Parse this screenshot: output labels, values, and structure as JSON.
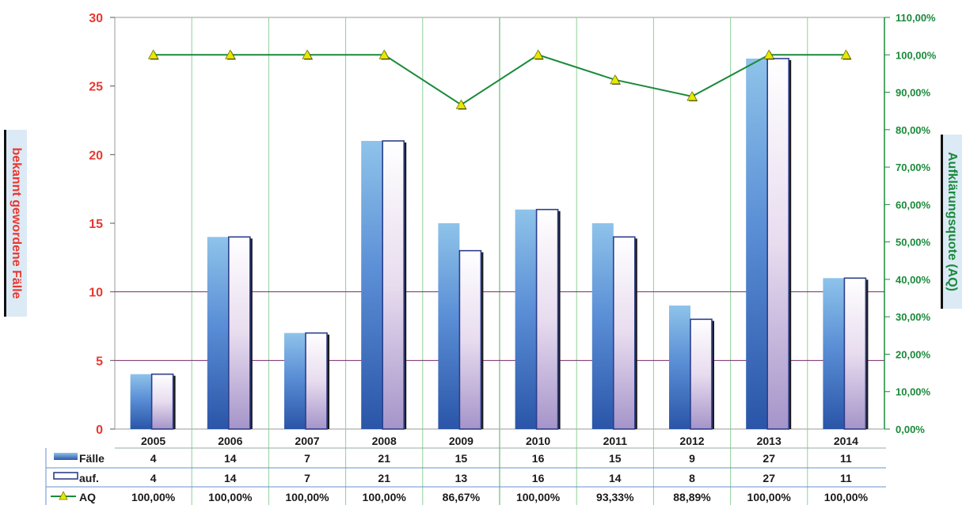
{
  "chart_data": {
    "type": "bar",
    "categories": [
      "2005",
      "2006",
      "2007",
      "2008",
      "2009",
      "2010",
      "2011",
      "2012",
      "2013",
      "2014"
    ],
    "series": [
      {
        "name": "Fälle",
        "type": "bar",
        "axis": "left",
        "values": [
          4,
          14,
          7,
          21,
          15,
          16,
          15,
          9,
          27,
          11
        ]
      },
      {
        "name": "auf.",
        "type": "bar",
        "axis": "left",
        "values": [
          4,
          14,
          7,
          21,
          13,
          16,
          14,
          8,
          27,
          11
        ]
      },
      {
        "name": "AQ",
        "type": "line",
        "axis": "right",
        "values": [
          100,
          100,
          100,
          100,
          86.67,
          100,
          93.33,
          88.89,
          100,
          100
        ]
      }
    ],
    "table": {
      "Fälle": [
        "4",
        "14",
        "7",
        "21",
        "15",
        "16",
        "15",
        "9",
        "27",
        "11"
      ],
      "auf.": [
        "4",
        "14",
        "7",
        "21",
        "13",
        "16",
        "14",
        "8",
        "27",
        "11"
      ],
      "AQ": [
        "100,00%",
        "100,00%",
        "100,00%",
        "100,00%",
        "86,67%",
        "100,00%",
        "93,33%",
        "88,89%",
        "100,00%",
        "100,00%"
      ]
    },
    "ylabel": "bekannt gewordene Fälle",
    "y2label": "Aufklärungsquote (AQ)",
    "ylim": [
      0,
      30
    ],
    "yticks": [
      "0",
      "5",
      "10",
      "15",
      "20",
      "25",
      "30"
    ],
    "y2lim": [
      0,
      110
    ],
    "y2ticks": [
      "0,00%",
      "10,00%",
      "20,00%",
      "30,00%",
      "40,00%",
      "50,00%",
      "60,00%",
      "70,00%",
      "80,00%",
      "90,00%",
      "100,00%",
      "110,00%"
    ],
    "grid": "horizontal at 5 and 10, vertical between categories",
    "legend": "data table rows at bottom",
    "colors": {
      "left_axis": "#e8382f",
      "right_axis": "#1a8a3a",
      "line": "#1a8a3a",
      "marker": "#e8e800",
      "bar1": "#5b8fd6",
      "bar2": "#f4eef8",
      "grid_h": "#7a2a6a",
      "grid_v": "#8fcf9a"
    }
  }
}
